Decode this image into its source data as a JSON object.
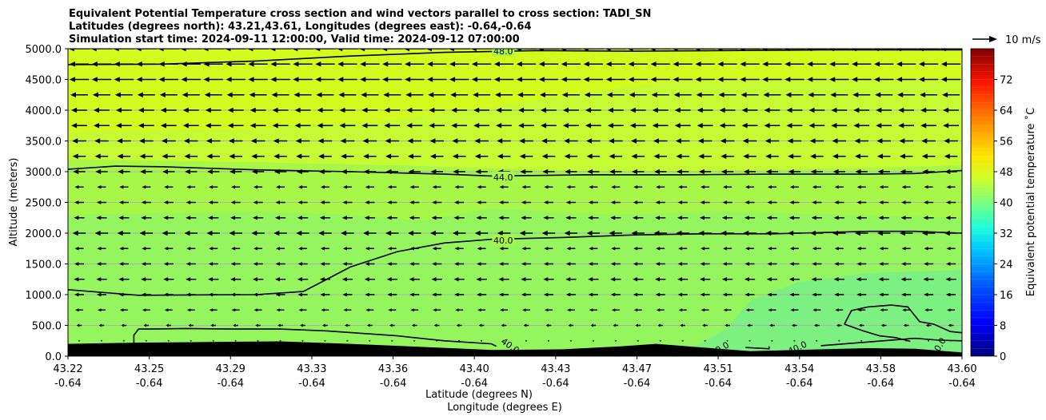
{
  "chart_data": {
    "type": "contourf",
    "title_lines": [
      "Equivalent Potential Temperature cross section and wind vectors parallel to cross section: TADI_SN",
      "Latitudes (degrees north): 43.21,43.61, Longitudes (degrees east): -0.64,-0.64",
      "Simulation start time: 2024-09-11 12:00:00, Valid time: 2024-09-12 07:00:00"
    ],
    "ylabel": "Altitude (meters)",
    "xlabel_lat": "Latitude (degrees N)",
    "xlabel_lon": "Longitude (degrees E)",
    "colorbar_label": "Equivalent potential temperature ˚C",
    "quiver_key_label": "10 m/s",
    "ylim": [
      0,
      5000
    ],
    "y_ticks": [
      0,
      500,
      1000,
      1500,
      2000,
      2500,
      3000,
      3500,
      4000,
      4500,
      5000
    ],
    "y_tick_labels": [
      "0.0",
      "500.0",
      "1000.0",
      "1500.0",
      "2000.0",
      "2500.0",
      "3000.0",
      "3500.0",
      "4000.0",
      "4500.0",
      "5000.0"
    ],
    "xlim": [
      43.22,
      43.6
    ],
    "x_ticks": [
      {
        "lat": "43.22",
        "lon": "-0.64"
      },
      {
        "lat": "43.25",
        "lon": "-0.64"
      },
      {
        "lat": "43.29",
        "lon": "-0.64"
      },
      {
        "lat": "43.33",
        "lon": "-0.64"
      },
      {
        "lat": "43.36",
        "lon": "-0.64"
      },
      {
        "lat": "43.40",
        "lon": "-0.64"
      },
      {
        "lat": "43.43",
        "lon": "-0.64"
      },
      {
        "lat": "43.47",
        "lon": "-0.64"
      },
      {
        "lat": "43.51",
        "lon": "-0.64"
      },
      {
        "lat": "43.54",
        "lon": "-0.64"
      },
      {
        "lat": "43.58",
        "lon": "-0.64"
      },
      {
        "lat": "43.60",
        "lon": "-0.64"
      }
    ],
    "colorbar_ticks": [
      0,
      8,
      16,
      24,
      32,
      40,
      48,
      56,
      64,
      72
    ],
    "colorbar_range": [
      0,
      80
    ],
    "grid": "horizontal",
    "contour_lines": [
      {
        "level": "48.0",
        "points": [
          [
            43.22,
            4740
          ],
          [
            43.26,
            4750
          ],
          [
            43.3,
            4800
          ],
          [
            43.34,
            4880
          ],
          [
            43.38,
            4940
          ],
          [
            43.42,
            4970
          ],
          [
            43.46,
            4960
          ],
          [
            43.5,
            4970
          ],
          [
            43.54,
            4980
          ],
          [
            43.58,
            4980
          ],
          [
            43.6,
            4980
          ]
        ]
      },
      {
        "level": "44.0",
        "points": [
          [
            43.22,
            3040
          ],
          [
            43.24,
            3090
          ],
          [
            43.26,
            3080
          ],
          [
            43.3,
            3030
          ],
          [
            43.34,
            3000
          ],
          [
            43.38,
            2960
          ],
          [
            43.4,
            2930
          ],
          [
            43.44,
            2950
          ],
          [
            43.48,
            2950
          ],
          [
            43.52,
            2960
          ],
          [
            43.56,
            2960
          ],
          [
            43.58,
            2970
          ],
          [
            43.6,
            3020
          ]
        ]
      },
      {
        "level": "40.0",
        "points": [
          [
            43.22,
            1080
          ],
          [
            43.25,
            990
          ],
          [
            43.3,
            1000
          ],
          [
            43.32,
            1050
          ],
          [
            43.34,
            1450
          ],
          [
            43.36,
            1700
          ],
          [
            43.38,
            1840
          ],
          [
            43.4,
            1900
          ],
          [
            43.43,
            1930
          ],
          [
            43.46,
            1970
          ],
          [
            43.49,
            1990
          ],
          [
            43.52,
            1990
          ],
          [
            43.56,
            2030
          ],
          [
            43.58,
            2030
          ],
          [
            43.6,
            2000
          ]
        ]
      },
      {
        "level": "40.0",
        "points": [
          [
            43.248,
            80
          ],
          [
            43.248,
            340
          ],
          [
            43.25,
            440
          ],
          [
            43.255,
            440
          ],
          [
            43.27,
            450
          ],
          [
            43.29,
            440
          ],
          [
            43.31,
            440
          ],
          [
            43.33,
            410
          ],
          [
            43.36,
            330
          ],
          [
            43.38,
            250
          ],
          [
            43.4,
            200
          ],
          [
            43.402,
            160
          ]
        ]
      },
      {
        "level": "40.0",
        "points": [
          [
            43.508,
            140
          ],
          [
            43.518,
            120
          ],
          [
            43.518,
            160
          ]
        ]
      },
      {
        "level": "40.0",
        "points": [
          [
            43.54,
            170
          ],
          [
            43.56,
            230
          ],
          [
            43.58,
            290
          ],
          [
            43.59,
            260
          ],
          [
            43.6,
            250
          ]
        ]
      },
      {
        "level": "40.0",
        "points": [
          [
            43.55,
            520
          ],
          [
            43.553,
            740
          ],
          [
            43.56,
            800
          ],
          [
            43.57,
            830
          ],
          [
            43.577,
            800
          ],
          [
            43.582,
            560
          ],
          [
            43.588,
            520
          ],
          [
            43.595,
            400
          ],
          [
            43.6,
            380
          ]
        ]
      },
      {
        "level": "40.0",
        "points": [
          [
            43.55,
            520
          ],
          [
            43.558,
            410
          ],
          [
            43.565,
            330
          ],
          [
            43.572,
            300
          ],
          [
            43.578,
            240
          ]
        ]
      }
    ],
    "contour_labels": [
      {
        "text": "48.0",
        "x": 43.405,
        "y": 4960,
        "angle": 0
      },
      {
        "text": "44.0",
        "x": 43.405,
        "y": 2910,
        "angle": 0
      },
      {
        "text": "40.0",
        "x": 43.405,
        "y": 1880,
        "angle": 0
      },
      {
        "text": "40.0",
        "x": 43.408,
        "y": 170,
        "angle": 35
      },
      {
        "text": "40.0",
        "x": 43.497,
        "y": 120,
        "angle": -30
      },
      {
        "text": "40.0",
        "x": 43.53,
        "y": 140,
        "angle": -25
      },
      {
        "text": "40.0",
        "x": 43.59,
        "y": 150,
        "angle": -60
      }
    ],
    "terrain": [
      [
        43.22,
        200
      ],
      [
        43.25,
        220
      ],
      [
        43.28,
        230
      ],
      [
        43.31,
        240
      ],
      [
        43.34,
        200
      ],
      [
        43.37,
        150
      ],
      [
        43.4,
        100
      ],
      [
        43.43,
        110
      ],
      [
        43.455,
        160
      ],
      [
        43.47,
        200
      ],
      [
        43.49,
        140
      ],
      [
        43.51,
        80
      ],
      [
        43.53,
        100
      ],
      [
        43.56,
        130
      ],
      [
        43.58,
        120
      ],
      [
        43.6,
        60
      ]
    ],
    "vector_rows": [
      {
        "alt": 5000,
        "u": -1.2
      },
      {
        "alt": 4750,
        "u": -1.1
      },
      {
        "alt": 4500,
        "u": -1.1
      },
      {
        "alt": 4250,
        "u": -1.0
      },
      {
        "alt": 4000,
        "u": -0.9
      },
      {
        "alt": 3750,
        "u": -0.9
      },
      {
        "alt": 3500,
        "u": -0.8
      },
      {
        "alt": 3250,
        "u": -0.75
      },
      {
        "alt": 3000,
        "u": -0.7
      },
      {
        "alt": 2750,
        "u": -0.5
      },
      {
        "alt": 2500,
        "u": -0.55
      },
      {
        "alt": 2250,
        "u": -0.6
      },
      {
        "alt": 2000,
        "u": -0.75
      },
      {
        "alt": 1750,
        "u": -0.5
      },
      {
        "alt": 1500,
        "u": -0.55
      },
      {
        "alt": 1250,
        "u": -0.6
      },
      {
        "alt": 1000,
        "u": -0.55
      },
      {
        "alt": 750,
        "u": -0.45
      },
      {
        "alt": 500,
        "u": -0.3
      },
      {
        "alt": 250,
        "u": -0.05
      }
    ],
    "colors": {
      "upper": "#d4fb1e",
      "upper_mid": "#c6fa33",
      "mid": "#a6f748",
      "lower": "#94f55e",
      "lower_right": "#7df082",
      "terrain": "#000000",
      "grid": "#b0b0b0"
    }
  }
}
